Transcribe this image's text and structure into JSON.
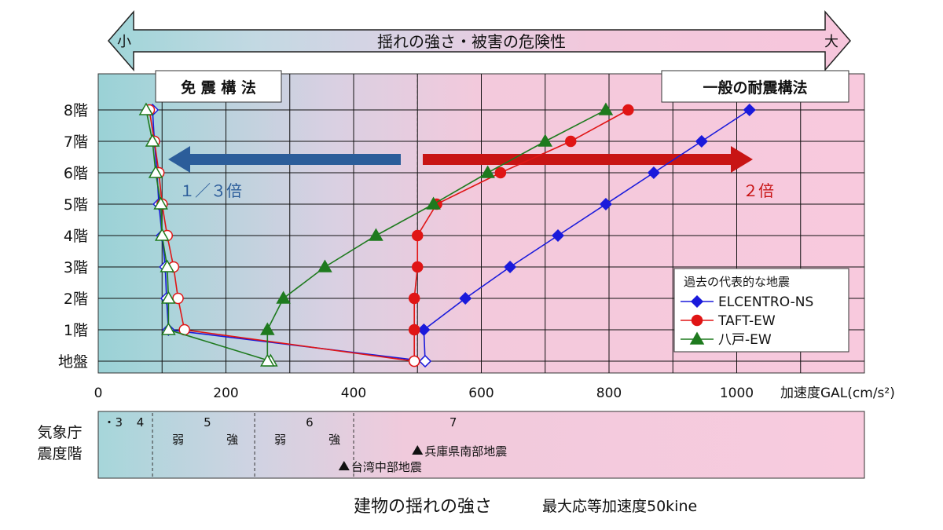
{
  "chart_data": {
    "type": "line",
    "banner": {
      "left": "小",
      "center": "揺れの強さ・被害の危険性",
      "right": "大"
    },
    "labels": {
      "left_box": "免 震 構 法",
      "right_box": "一般の耐震構法"
    },
    "arrows": {
      "left_text": "１／３倍",
      "right_text": "２倍"
    },
    "colors": {
      "blue": "#1a1adb",
      "red": "#e01515",
      "green": "#1e7a1e",
      "left_arrow": "#2b5d9a",
      "right_arrow": "#c81414"
    },
    "xlabel": "加速度GAL(cm/s²)",
    "xlim": [
      0,
      1200
    ],
    "x_ticks": [
      0,
      200,
      400,
      600,
      800,
      1000
    ],
    "x_tick_labels": [
      "0",
      "200",
      "400",
      "600",
      "800",
      "1000"
    ],
    "categories": [
      "地盤",
      "1階",
      "2階",
      "3階",
      "4階",
      "5階",
      "6階",
      "7階",
      "8階"
    ],
    "reference_line_x": 500,
    "legend": {
      "title": "過去の代表的な地震",
      "position": "right"
    },
    "series": [
      {
        "name": "ELCENTRO-NS",
        "color": "#1a1adb",
        "marker": "diamond",
        "x": [
          512,
          510,
          575,
          645,
          720,
          795,
          870,
          945,
          1020
        ]
      },
      {
        "name": "TAFT-EW",
        "color": "#e01515",
        "marker": "circle",
        "x": [
          495,
          495,
          495,
          500,
          500,
          530,
          630,
          740,
          830
        ]
      },
      {
        "name": "八戸-EW",
        "color": "#1e7a1e",
        "marker": "triangle",
        "x": [
          265,
          265,
          290,
          355,
          435,
          525,
          610,
          700,
          795
        ]
      }
    ],
    "isolated_series": [
      {
        "color": "#1a1adb",
        "marker": "diamond",
        "x": [
          512,
          110,
          107,
          105,
          100,
          95,
          92,
          88,
          85
        ]
      },
      {
        "color": "#e01515",
        "marker": "circle",
        "x": [
          495,
          135,
          125,
          118,
          108,
          100,
          95,
          88,
          80
        ]
      },
      {
        "color": "#1e7a1e",
        "marker": "triangle",
        "x": [
          270,
          110,
          110,
          108,
          100,
          98,
          90,
          85,
          75
        ]
      }
    ],
    "scale": {
      "row_label": [
        "気象庁",
        "震度階"
      ],
      "separators_x": [
        85,
        245,
        400
      ],
      "zones": [
        {
          "label": "・3",
          "x": 8
        },
        {
          "label": "4",
          "x": 60
        },
        {
          "label": "5",
          "x": 165
        },
        {
          "label": "6",
          "x": 325
        },
        {
          "label": "7",
          "x": 550
        }
      ],
      "sublabels": [
        {
          "label": "弱",
          "x": 125
        },
        {
          "label": "強",
          "x": 210
        },
        {
          "label": "弱",
          "x": 285
        },
        {
          "label": "強",
          "x": 370
        }
      ],
      "events": [
        {
          "label": "兵庫県南部地震",
          "x": 500
        },
        {
          "label": "台湾中部地震",
          "x": 385
        }
      ]
    },
    "footer": {
      "left": "建物の揺れの強さ",
      "right": "最大応等加速度50kine"
    }
  }
}
